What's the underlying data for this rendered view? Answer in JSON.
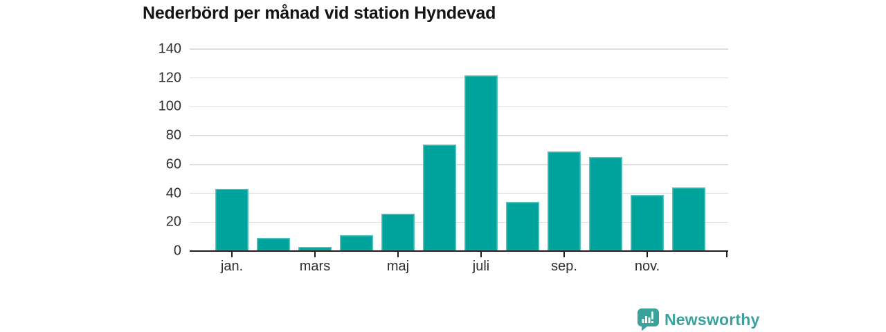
{
  "chart_data": {
    "type": "bar",
    "title": "Nederbörd per månad vid station Hyndevad",
    "n_bars": 12,
    "values": [
      43,
      9,
      3,
      11,
      26,
      74,
      122,
      34,
      69,
      65,
      39,
      44
    ],
    "ylim": [
      0,
      140
    ],
    "yticks": [
      0,
      20,
      40,
      60,
      80,
      100,
      120,
      140
    ],
    "xticks": [
      {
        "index": 0,
        "label": "jan."
      },
      {
        "index": 2,
        "label": "mars"
      },
      {
        "index": 4,
        "label": "maj"
      },
      {
        "index": 6,
        "label": "juli"
      },
      {
        "index": 8,
        "label": "sep."
      },
      {
        "index": 10,
        "label": "nov."
      }
    ],
    "axis_end_tick": true,
    "grid": true,
    "legend": "none",
    "bar_color": "#00a39b"
  },
  "colors": {
    "bar": "#00a39b",
    "gridline": "#dedede",
    "axis": "#1f1f1f",
    "tick_text": "#2e2e2e",
    "title_text": "#141414",
    "brand_teal": "#3aa29b"
  },
  "branding": {
    "name": "Newsworthy",
    "icon": "newsworthy-bar-chart-pin-icon"
  }
}
